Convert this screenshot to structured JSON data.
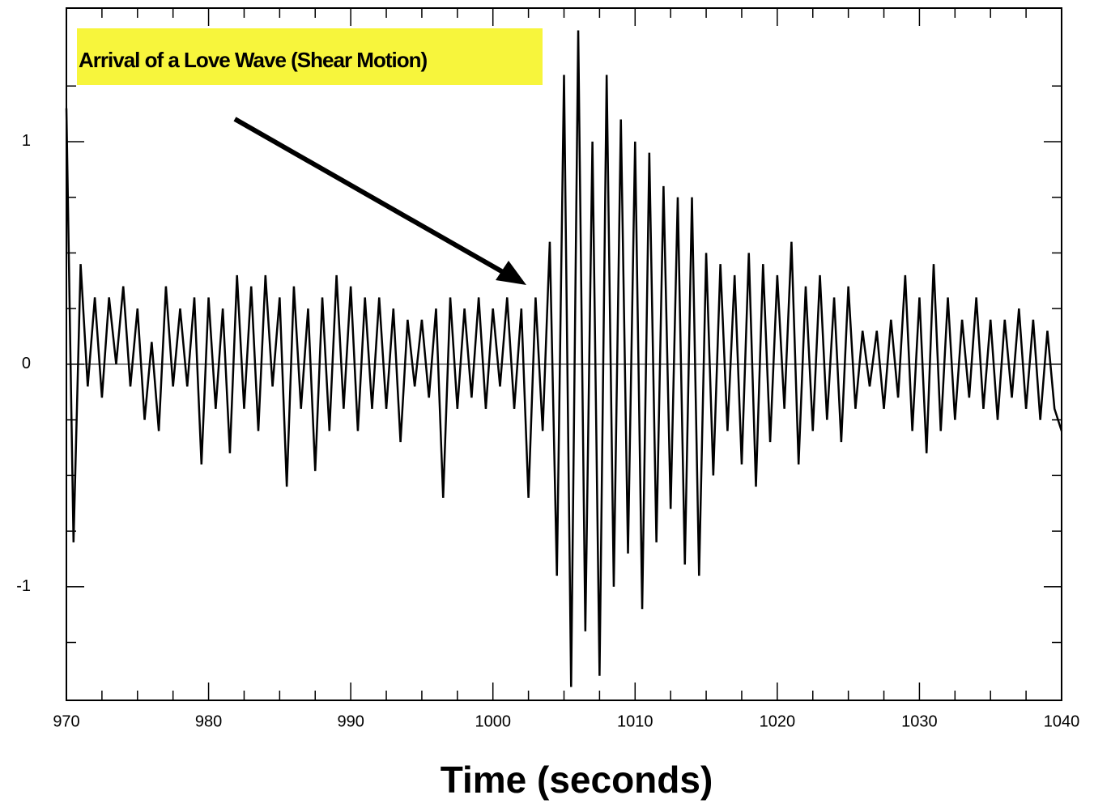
{
  "chart_data": {
    "type": "line",
    "xlabel": "Time (seconds)",
    "annotation": "Arrival of a Love Wave (Shear Motion)",
    "x": [
      970,
      970.5,
      971,
      971.5,
      972,
      972.5,
      973,
      973.5,
      974,
      974.5,
      975,
      975.5,
      976,
      976.5,
      977,
      977.5,
      978,
      978.5,
      979,
      979.5,
      980,
      980.5,
      981,
      981.5,
      982,
      982.5,
      983,
      983.5,
      984,
      984.5,
      985,
      985.5,
      986,
      986.5,
      987,
      987.5,
      988,
      988.5,
      989,
      989.5,
      990,
      990.5,
      991,
      991.5,
      992,
      992.5,
      993,
      993.5,
      994,
      994.5,
      995,
      995.5,
      996,
      996.5,
      997,
      997.5,
      998,
      998.5,
      999,
      999.5,
      1000,
      1000.5,
      1001,
      1001.5,
      1002,
      1002.5,
      1003,
      1003.5,
      1004,
      1004.5,
      1005,
      1005.5,
      1006,
      1006.5,
      1007,
      1007.5,
      1008,
      1008.5,
      1009,
      1009.5,
      1010,
      1010.5,
      1011,
      1011.5,
      1012,
      1012.5,
      1013,
      1013.5,
      1014,
      1014.5,
      1015,
      1015.5,
      1016,
      1016.5,
      1017,
      1017.5,
      1018,
      1018.5,
      1019,
      1019.5,
      1020,
      1020.5,
      1021,
      1021.5,
      1022,
      1022.5,
      1023,
      1023.5,
      1024,
      1024.5,
      1025,
      1025.5,
      1026,
      1026.5,
      1027,
      1027.5,
      1028,
      1028.5,
      1029,
      1029.5,
      1030,
      1030.5,
      1031,
      1031.5,
      1032,
      1032.5,
      1033,
      1033.5,
      1034,
      1034.5,
      1035,
      1035.5,
      1036,
      1036.5,
      1037,
      1037.5,
      1038,
      1038.5,
      1039,
      1039.5,
      1040
    ],
    "series": [
      {
        "color": "#000000",
        "values": [
          1.15,
          -0.8,
          0.45,
          -0.1,
          0.3,
          -0.15,
          0.3,
          0.0,
          0.35,
          -0.1,
          0.25,
          -0.25,
          0.1,
          -0.3,
          0.35,
          -0.1,
          0.25,
          -0.1,
          0.3,
          -0.45,
          0.3,
          -0.2,
          0.25,
          -0.4,
          0.4,
          -0.2,
          0.35,
          -0.3,
          0.4,
          -0.1,
          0.3,
          -0.55,
          0.35,
          -0.2,
          0.25,
          -0.48,
          0.3,
          -0.3,
          0.4,
          -0.2,
          0.35,
          -0.3,
          0.3,
          -0.2,
          0.3,
          -0.2,
          0.25,
          -0.35,
          0.2,
          -0.1,
          0.2,
          -0.15,
          0.25,
          -0.6,
          0.3,
          -0.2,
          0.25,
          -0.15,
          0.3,
          -0.2,
          0.25,
          -0.1,
          0.3,
          -0.2,
          0.25,
          -0.6,
          0.3,
          -0.3,
          0.55,
          -0.95,
          1.3,
          -1.45,
          1.5,
          -1.2,
          1.0,
          -1.4,
          1.3,
          -1.0,
          1.1,
          -0.85,
          1.0,
          -1.1,
          0.95,
          -0.8,
          0.8,
          -0.65,
          0.75,
          -0.9,
          0.75,
          -0.95,
          0.5,
          -0.5,
          0.45,
          -0.3,
          0.4,
          -0.45,
          0.5,
          -0.55,
          0.45,
          -0.35,
          0.4,
          -0.2,
          0.55,
          -0.45,
          0.35,
          -0.3,
          0.4,
          -0.25,
          0.3,
          -0.35,
          0.35,
          -0.2,
          0.15,
          -0.1,
          0.15,
          -0.2,
          0.2,
          -0.15,
          0.4,
          -0.3,
          0.3,
          -0.4,
          0.45,
          -0.3,
          0.3,
          -0.25,
          0.2,
          -0.15,
          0.3,
          -0.2,
          0.2,
          -0.25,
          0.2,
          -0.15,
          0.25,
          -0.2,
          0.2,
          -0.25,
          0.15,
          -0.2,
          -0.3
        ]
      }
    ],
    "xlim": [
      970,
      1040
    ],
    "xticks": [
      970,
      980,
      990,
      1000,
      1010,
      1020,
      1030,
      1040
    ],
    "xminorticks": [
      972.5,
      975,
      977.5,
      982.5,
      985,
      987.5,
      992.5,
      995,
      997.5,
      1002.5,
      1005,
      1007.5,
      1012.5,
      1015,
      1017.5,
      1022.5,
      1025,
      1027.5,
      1032.5,
      1035,
      1037.5
    ],
    "ylim": [
      -1.51,
      1.6
    ],
    "yticks": [
      -1,
      0,
      1
    ],
    "yminorticks": [
      -1.25,
      -0.75,
      -0.5,
      -0.25,
      0.25,
      0.5,
      0.75,
      1.25
    ],
    "zero_line": true
  }
}
